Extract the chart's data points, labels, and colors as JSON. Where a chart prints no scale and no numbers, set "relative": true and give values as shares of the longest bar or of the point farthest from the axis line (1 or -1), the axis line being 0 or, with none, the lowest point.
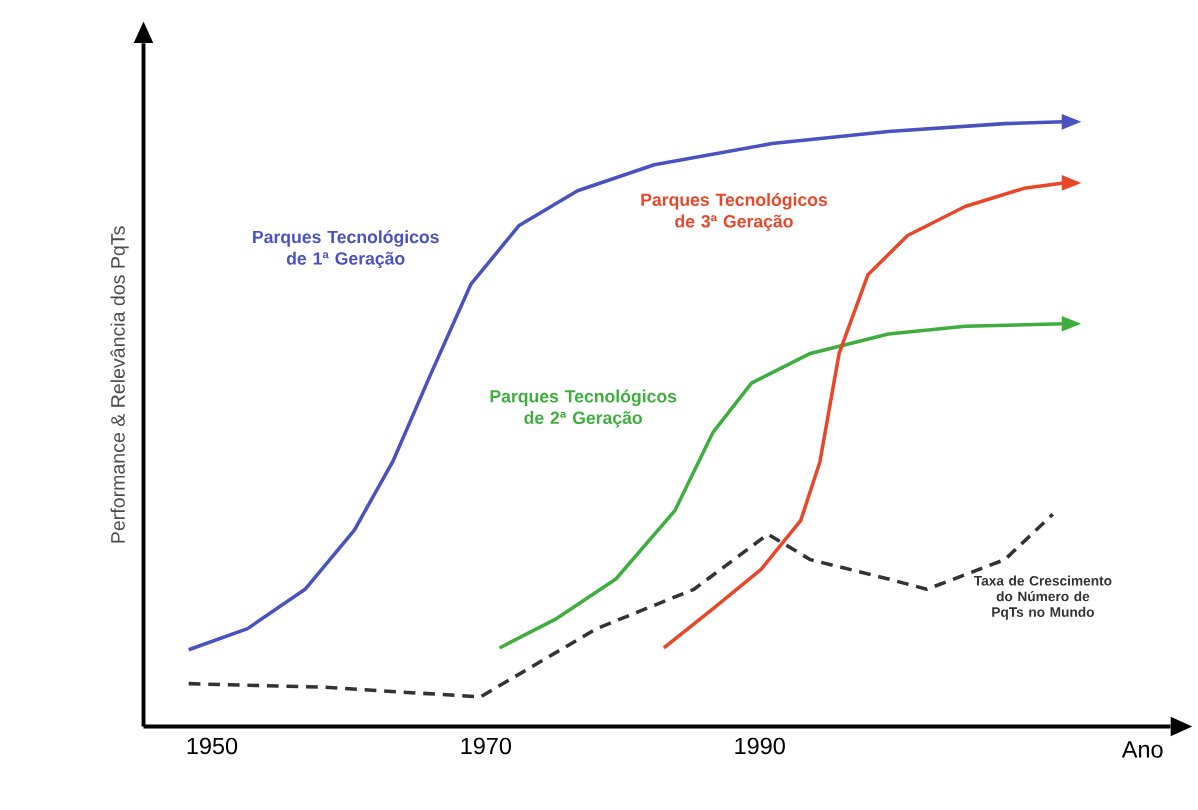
{
  "chart_data": {
    "type": "line",
    "relative": true,
    "xlabel": "Ano",
    "ylabel": "Performance & Relevância dos PqTs",
    "xlim": [
      1945,
      2020
    ],
    "xticks": [
      1950,
      1970,
      1990
    ],
    "legend": false,
    "grid": false,
    "series": [
      {
        "name": "Parques Tecnológicos de 1ª Geração",
        "color": "#4a52c0",
        "line_style": "solid",
        "x": [
          1948.3,
          1952.6,
          1956.8,
          1960.4,
          1963.2,
          1966,
          1968.9,
          1972.4,
          1976.7,
          1982.3,
          1990.9,
          1999.4,
          2007.9,
          2012.2
        ],
        "values": [
          0.127,
          0.162,
          0.227,
          0.325,
          0.438,
          0.584,
          0.731,
          0.828,
          0.886,
          0.929,
          0.964,
          0.984,
          0.997,
          1
        ]
      },
      {
        "name": "Parques Tecnológicos de 2ª Geração",
        "color": "#3fae3f",
        "line_style": "solid",
        "x": [
          1971,
          1975.2,
          1979.5,
          1983.8,
          1986.6,
          1989.4,
          1993.7,
          1999.4,
          2005,
          2012.2
        ],
        "values": [
          0.13,
          0.179,
          0.244,
          0.357,
          0.487,
          0.568,
          0.617,
          0.649,
          0.662,
          0.666
        ]
      },
      {
        "name": "Parques Tecnológicos de 3ª Geração",
        "color": "#e8472a",
        "line_style": "solid",
        "x": [
          1983,
          1986.6,
          1990.1,
          1993,
          1994.4,
          1995.8,
          1997.9,
          2000.8,
          2005,
          2009.3,
          2012.2
        ],
        "values": [
          0.13,
          0.195,
          0.26,
          0.341,
          0.438,
          0.617,
          0.747,
          0.812,
          0.86,
          0.89,
          0.899
        ]
      },
      {
        "name": "Taxa de Crescimento do Número de PqTs no Mundo",
        "color": "#333333",
        "line_style": "dashed",
        "x": [
          1948.3,
          1958.2,
          1969.6,
          1978.1,
          1985.2,
          1990.6,
          1993.7,
          1999.4,
          2002.2,
          2007.9,
          2011.4
        ],
        "values": [
          0.071,
          0.065,
          0.049,
          0.162,
          0.227,
          0.318,
          0.276,
          0.244,
          0.227,
          0.276,
          0.351
        ]
      }
    ]
  }
}
